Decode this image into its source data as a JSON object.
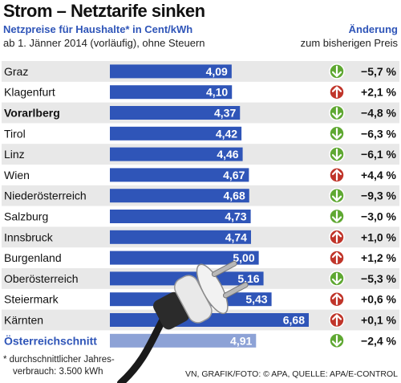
{
  "header": {
    "title": "Strom – Netztarife sinken",
    "subtitle": "Netzpreise für Haushalte* in Cent/kWh",
    "subtitle2": "ab 1. Jänner 2014 (vorläufig), ohne Steuern",
    "change_title": "Änderung",
    "change_subtitle": "zum bisherigen Preis"
  },
  "footer": {
    "note_line1": "* durchschnittlicher Jahres-",
    "note_line2": "verbrauch: 3.500 kWh",
    "source": "VN, GRAFIK/FOTO: © APA, QUELLE: APA/E-CONTROL"
  },
  "colors": {
    "bar": "#2f55b8",
    "average_bar": "#8da2d6",
    "row_alt": "#e8e8e8",
    "down": "#5fa832",
    "up": "#c0352a",
    "average_label": "#2f55b8"
  },
  "chart_data": {
    "type": "bar",
    "orientation": "horizontal",
    "unit": "Cent/kWh",
    "categories": [
      "Graz",
      "Klagenfurt",
      "Vorarlberg",
      "Tirol",
      "Linz",
      "Wien",
      "Niederösterreich",
      "Salzburg",
      "Innsbruck",
      "Burgenland",
      "Oberösterreich",
      "Steiermark",
      "Kärnten",
      "Österreichschnitt"
    ],
    "values": [
      4.09,
      4.1,
      4.37,
      4.42,
      4.46,
      4.67,
      4.68,
      4.73,
      4.74,
      5.0,
      5.16,
      5.43,
      6.68,
      4.91
    ],
    "value_labels": [
      "4,09",
      "4,10",
      "4,37",
      "4,42",
      "4,46",
      "4,67",
      "4,68",
      "4,73",
      "4,74",
      "5,00",
      "5,16",
      "5,43",
      "6,68",
      "4,91"
    ],
    "change_labels": [
      "−5,7 %",
      "+2,1 %",
      "−4,8 %",
      "−6,3 %",
      "−6,1 %",
      "+4,4 %",
      "−9,3 %",
      "−3,0 %",
      "+1,0 %",
      "+1,2 %",
      "−5,3 %",
      "+0,6 %",
      "+0,1 %",
      "−2,4 %"
    ],
    "change_direction": [
      "down",
      "up",
      "down",
      "down",
      "down",
      "up",
      "down",
      "down",
      "up",
      "up",
      "down",
      "up",
      "up",
      "down"
    ],
    "bold_categories": [
      "Vorarlberg",
      "Österreichschnitt"
    ],
    "average_category": "Österreichschnitt"
  }
}
